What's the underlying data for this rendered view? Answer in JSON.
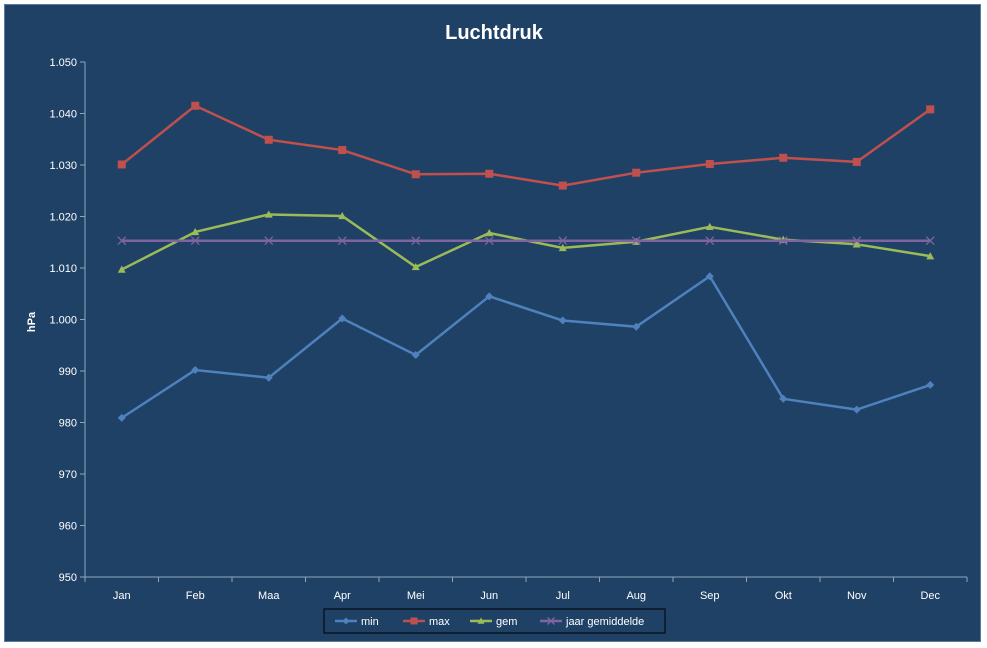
{
  "chart_data": {
    "type": "line",
    "title": "Luchtdruk",
    "xlabel": "",
    "ylabel": "hPa",
    "ylim": [
      950,
      1050
    ],
    "ytick_step": 10,
    "ytick_labels": [
      "950",
      "960",
      "970",
      "980",
      "990",
      "1.000",
      "1.010",
      "1.020",
      "1.030",
      "1.040",
      "1.050"
    ],
    "grid": false,
    "legend_position": "bottom",
    "categories": [
      "Jan",
      "Feb",
      "Maa",
      "Apr",
      "Mei",
      "Jun",
      "Jul",
      "Aug",
      "Sep",
      "Okt",
      "Nov",
      "Dec"
    ],
    "series": [
      {
        "name": "min",
        "color": "#4f81bd",
        "marker": "diamond",
        "values": [
          980.9,
          990.2,
          988.7,
          1000.2,
          993.1,
          1004.5,
          999.8,
          998.6,
          1008.4,
          984.6,
          982.5,
          987.3
        ]
      },
      {
        "name": "max",
        "color": "#c0504d",
        "marker": "square",
        "values": [
          1030.1,
          1041.5,
          1034.9,
          1032.9,
          1028.2,
          1028.3,
          1026.0,
          1028.5,
          1030.2,
          1031.4,
          1030.6,
          1040.8
        ]
      },
      {
        "name": "gem",
        "color": "#9bbb59",
        "marker": "triangle",
        "values": [
          1009.7,
          1017.0,
          1020.4,
          1020.1,
          1010.2,
          1016.8,
          1013.9,
          1015.1,
          1018.0,
          1015.5,
          1014.6,
          1012.3
        ]
      },
      {
        "name": "jaar gemiddelde",
        "color": "#8064a2",
        "marker": "x",
        "values": [
          1015.3,
          1015.3,
          1015.3,
          1015.3,
          1015.3,
          1015.3,
          1015.3,
          1015.3,
          1015.3,
          1015.3,
          1015.3,
          1015.3
        ]
      }
    ]
  }
}
